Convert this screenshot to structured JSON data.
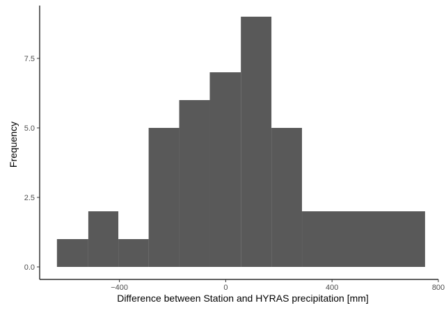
{
  "chart_data": {
    "type": "bar",
    "subtype": "histogram",
    "title": "",
    "xlabel": "Difference between Station and HYRAS precipitation [mm]",
    "ylabel": "Frequency",
    "bins": [
      {
        "x0": -635,
        "x1": -517,
        "count": 1
      },
      {
        "x0": -517,
        "x1": -404,
        "count": 2
      },
      {
        "x0": -404,
        "x1": -290,
        "count": 1
      },
      {
        "x0": -290,
        "x1": -175,
        "count": 5
      },
      {
        "x0": -175,
        "x1": -60,
        "count": 6
      },
      {
        "x0": -60,
        "x1": 57,
        "count": 7
      },
      {
        "x0": 57,
        "x1": 172,
        "count": 9
      },
      {
        "x0": 172,
        "x1": 287,
        "count": 5
      },
      {
        "x0": 287,
        "x1": 750,
        "count": 2
      }
    ],
    "xlim": [
      -700,
      800
    ],
    "ylim": [
      -0.45,
      9.4
    ],
    "x_ticks": [
      -400,
      0,
      400,
      800
    ],
    "x_tick_labels": [
      "−400",
      "0",
      "400",
      "800"
    ],
    "y_ticks": [
      0,
      2.5,
      5,
      7.5
    ],
    "y_tick_labels": [
      "0.0",
      "2.5",
      "5.0",
      "7.5"
    ],
    "bar_color": "#595959",
    "grid": false,
    "legend": "none"
  }
}
